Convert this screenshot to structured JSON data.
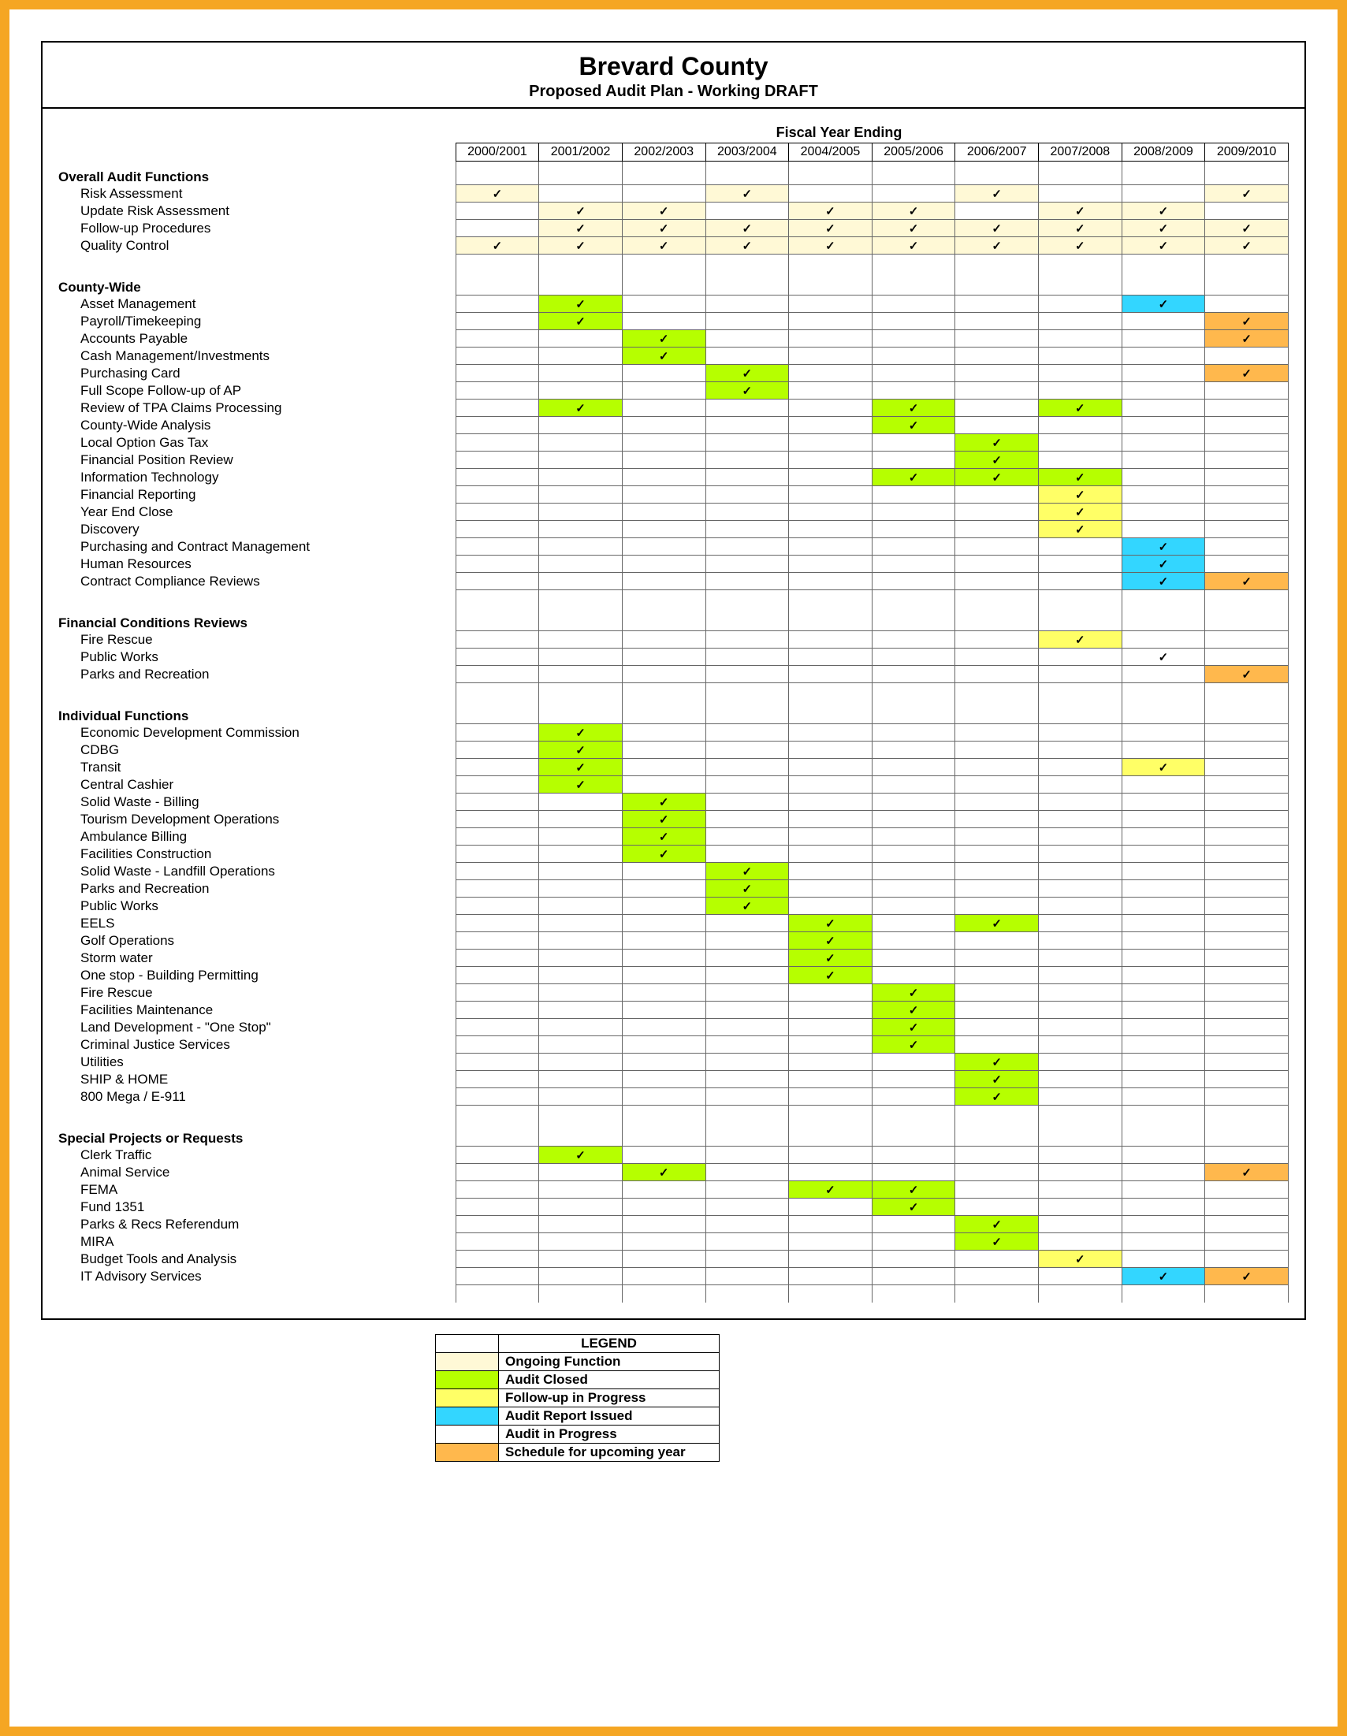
{
  "colors": {
    "ongoing": "#fff9d6",
    "closed": "#b6ff00",
    "followup": "#ffff66",
    "issued": "#33d6ff",
    "progress": "#ffffff",
    "upcoming": "#ffb84d",
    "frame": "#f5a623",
    "border": "#000000"
  },
  "title": "Brevard County",
  "subtitle": "Proposed Audit Plan - Working DRAFT",
  "fy_heading": "Fiscal Year Ending",
  "years": [
    "2000/2001",
    "2001/2002",
    "2002/2003",
    "2003/2004",
    "2004/2005",
    "2005/2006",
    "2006/2007",
    "2007/2008",
    "2008/2009",
    "2009/2010"
  ],
  "checkmark": "✓",
  "legend": {
    "title": "LEGEND",
    "items": [
      {
        "color": "ongoing",
        "label": "Ongoing Function"
      },
      {
        "color": "closed",
        "label": "Audit Closed"
      },
      {
        "color": "followup",
        "label": "Follow-up in Progress"
      },
      {
        "color": "issued",
        "label": "Audit Report Issued"
      },
      {
        "color": "progress",
        "label": "Audit in Progress"
      },
      {
        "color": "upcoming",
        "label": "Schedule for upcoming year"
      }
    ]
  },
  "sections": [
    {
      "title": "Overall Audit Functions",
      "rows": [
        {
          "label": "Risk Assessment",
          "cells": [
            "ongoing",
            "",
            "",
            "ongoing",
            "",
            "",
            "ongoing",
            "",
            "",
            "ongoing"
          ]
        },
        {
          "label": "Update Risk Assessment",
          "cells": [
            "",
            "ongoing",
            "ongoing",
            "",
            "ongoing",
            "ongoing",
            "",
            "ongoing",
            "ongoing",
            ""
          ]
        },
        {
          "label": "Follow-up Procedures",
          "cells": [
            "",
            "ongoing",
            "ongoing",
            "ongoing",
            "ongoing",
            "ongoing",
            "ongoing",
            "ongoing",
            "ongoing",
            "ongoing"
          ]
        },
        {
          "label": "Quality Control",
          "cells": [
            "ongoing",
            "ongoing",
            "ongoing",
            "ongoing",
            "ongoing",
            "ongoing",
            "ongoing",
            "ongoing",
            "ongoing",
            "ongoing"
          ]
        }
      ]
    },
    {
      "title": "County-Wide",
      "rows": [
        {
          "label": "Asset Management",
          "cells": [
            "",
            "closed",
            "",
            "",
            "",
            "",
            "",
            "",
            "issued",
            ""
          ]
        },
        {
          "label": "Payroll/Timekeeping",
          "cells": [
            "",
            "closed",
            "",
            "",
            "",
            "",
            "",
            "",
            "",
            "upcoming"
          ]
        },
        {
          "label": "Accounts Payable",
          "cells": [
            "",
            "",
            "closed",
            "",
            "",
            "",
            "",
            "",
            "",
            "upcoming"
          ]
        },
        {
          "label": "Cash Management/Investments",
          "cells": [
            "",
            "",
            "closed",
            "",
            "",
            "",
            "",
            "",
            "",
            ""
          ]
        },
        {
          "label": "Purchasing Card",
          "cells": [
            "",
            "",
            "",
            "closed",
            "",
            "",
            "",
            "",
            "",
            "upcoming"
          ]
        },
        {
          "label": "Full Scope Follow-up of AP",
          "cells": [
            "",
            "",
            "",
            "closed",
            "",
            "",
            "",
            "",
            "",
            ""
          ]
        },
        {
          "label": "Review of TPA Claims Processing",
          "cells": [
            "",
            "closed",
            "",
            "",
            "",
            "closed",
            "",
            "closed",
            "",
            ""
          ]
        },
        {
          "label": "County-Wide Analysis",
          "cells": [
            "",
            "",
            "",
            "",
            "",
            "closed",
            "",
            "",
            "",
            ""
          ]
        },
        {
          "label": "Local Option Gas Tax",
          "cells": [
            "",
            "",
            "",
            "",
            "",
            "",
            "closed",
            "",
            "",
            ""
          ]
        },
        {
          "label": "Financial Position Review",
          "cells": [
            "",
            "",
            "",
            "",
            "",
            "",
            "closed",
            "",
            "",
            ""
          ]
        },
        {
          "label": "Information Technology",
          "cells": [
            "",
            "",
            "",
            "",
            "",
            "closed",
            "closed",
            "closed",
            "",
            ""
          ]
        },
        {
          "label": "Financial Reporting",
          "cells": [
            "",
            "",
            "",
            "",
            "",
            "",
            "",
            "followup",
            "",
            ""
          ]
        },
        {
          "label": "Year End Close",
          "cells": [
            "",
            "",
            "",
            "",
            "",
            "",
            "",
            "followup",
            "",
            ""
          ]
        },
        {
          "label": "Discovery",
          "cells": [
            "",
            "",
            "",
            "",
            "",
            "",
            "",
            "followup",
            "",
            ""
          ]
        },
        {
          "label": "Purchasing and Contract Management",
          "cells": [
            "",
            "",
            "",
            "",
            "",
            "",
            "",
            "",
            "issued",
            ""
          ]
        },
        {
          "label": "Human Resources",
          "cells": [
            "",
            "",
            "",
            "",
            "",
            "",
            "",
            "",
            "issued",
            ""
          ]
        },
        {
          "label": "Contract Compliance Reviews",
          "cells": [
            "",
            "",
            "",
            "",
            "",
            "",
            "",
            "",
            "issued",
            "upcoming"
          ]
        }
      ]
    },
    {
      "title": "Financial Conditions Reviews",
      "rows": [
        {
          "label": "Fire Rescue",
          "cells": [
            "",
            "",
            "",
            "",
            "",
            "",
            "",
            "followup",
            "",
            ""
          ]
        },
        {
          "label": "Public Works",
          "cells": [
            "",
            "",
            "",
            "",
            "",
            "",
            "",
            "",
            "progress",
            ""
          ]
        },
        {
          "label": "Parks and Recreation",
          "cells": [
            "",
            "",
            "",
            "",
            "",
            "",
            "",
            "",
            "",
            "upcoming"
          ]
        }
      ]
    },
    {
      "title": "Individual Functions",
      "rows": [
        {
          "label": "Economic Development Commission",
          "cells": [
            "",
            "closed",
            "",
            "",
            "",
            "",
            "",
            "",
            "",
            ""
          ]
        },
        {
          "label": "CDBG",
          "cells": [
            "",
            "closed",
            "",
            "",
            "",
            "",
            "",
            "",
            "",
            ""
          ]
        },
        {
          "label": "Transit",
          "cells": [
            "",
            "closed",
            "",
            "",
            "",
            "",
            "",
            "",
            "followup",
            ""
          ]
        },
        {
          "label": "Central Cashier",
          "cells": [
            "",
            "closed",
            "",
            "",
            "",
            "",
            "",
            "",
            "",
            ""
          ]
        },
        {
          "label": "Solid Waste - Billing",
          "cells": [
            "",
            "",
            "closed",
            "",
            "",
            "",
            "",
            "",
            "",
            ""
          ]
        },
        {
          "label": "Tourism Development Operations",
          "cells": [
            "",
            "",
            "closed",
            "",
            "",
            "",
            "",
            "",
            "",
            ""
          ]
        },
        {
          "label": "Ambulance Billing",
          "cells": [
            "",
            "",
            "closed",
            "",
            "",
            "",
            "",
            "",
            "",
            ""
          ]
        },
        {
          "label": "Facilities Construction",
          "cells": [
            "",
            "",
            "closed",
            "",
            "",
            "",
            "",
            "",
            "",
            ""
          ]
        },
        {
          "label": "Solid Waste - Landfill Operations",
          "cells": [
            "",
            "",
            "",
            "closed",
            "",
            "",
            "",
            "",
            "",
            ""
          ]
        },
        {
          "label": "Parks and Recreation",
          "cells": [
            "",
            "",
            "",
            "closed",
            "",
            "",
            "",
            "",
            "",
            ""
          ]
        },
        {
          "label": "Public Works",
          "cells": [
            "",
            "",
            "",
            "closed",
            "",
            "",
            "",
            "",
            "",
            ""
          ]
        },
        {
          "label": "EELS",
          "cells": [
            "",
            "",
            "",
            "",
            "closed",
            "",
            "closed",
            "",
            "",
            ""
          ]
        },
        {
          "label": "Golf Operations",
          "cells": [
            "",
            "",
            "",
            "",
            "closed",
            "",
            "",
            "",
            "",
            ""
          ]
        },
        {
          "label": "Storm water",
          "cells": [
            "",
            "",
            "",
            "",
            "closed",
            "",
            "",
            "",
            "",
            ""
          ]
        },
        {
          "label": "One stop - Building Permitting",
          "cells": [
            "",
            "",
            "",
            "",
            "closed",
            "",
            "",
            "",
            "",
            ""
          ]
        },
        {
          "label": "Fire Rescue",
          "cells": [
            "",
            "",
            "",
            "",
            "",
            "closed",
            "",
            "",
            "",
            ""
          ]
        },
        {
          "label": "Facilities Maintenance",
          "cells": [
            "",
            "",
            "",
            "",
            "",
            "closed",
            "",
            "",
            "",
            ""
          ]
        },
        {
          "label": "Land Development - \"One Stop\"",
          "cells": [
            "",
            "",
            "",
            "",
            "",
            "closed",
            "",
            "",
            "",
            ""
          ]
        },
        {
          "label": "Criminal Justice Services",
          "cells": [
            "",
            "",
            "",
            "",
            "",
            "closed",
            "",
            "",
            "",
            ""
          ]
        },
        {
          "label": "Utilities",
          "cells": [
            "",
            "",
            "",
            "",
            "",
            "",
            "closed",
            "",
            "",
            ""
          ]
        },
        {
          "label": "SHIP & HOME",
          "cells": [
            "",
            "",
            "",
            "",
            "",
            "",
            "closed",
            "",
            "",
            ""
          ]
        },
        {
          "label": "800 Mega / E-911",
          "cells": [
            "",
            "",
            "",
            "",
            "",
            "",
            "closed",
            "",
            "",
            ""
          ]
        }
      ]
    },
    {
      "title": "Special Projects or Requests",
      "rows": [
        {
          "label": "Clerk Traffic",
          "cells": [
            "",
            "closed",
            "",
            "",
            "",
            "",
            "",
            "",
            "",
            ""
          ]
        },
        {
          "label": "Animal Service",
          "cells": [
            "",
            "",
            "closed",
            "",
            "",
            "",
            "",
            "",
            "",
            "upcoming"
          ]
        },
        {
          "label": "FEMA",
          "cells": [
            "",
            "",
            "",
            "",
            "closed",
            "closed",
            "",
            "",
            "",
            ""
          ]
        },
        {
          "label": "Fund 1351",
          "cells": [
            "",
            "",
            "",
            "",
            "",
            "closed",
            "",
            "",
            "",
            ""
          ]
        },
        {
          "label": "Parks & Recs Referendum",
          "cells": [
            "",
            "",
            "",
            "",
            "",
            "",
            "closed",
            "",
            "",
            ""
          ]
        },
        {
          "label": "MIRA",
          "cells": [
            "",
            "",
            "",
            "",
            "",
            "",
            "closed",
            "",
            "",
            ""
          ]
        },
        {
          "label": "Budget Tools and Analysis",
          "cells": [
            "",
            "",
            "",
            "",
            "",
            "",
            "",
            "followup",
            "",
            ""
          ]
        },
        {
          "label": "IT Advisory Services",
          "cells": [
            "",
            "",
            "",
            "",
            "",
            "",
            "",
            "",
            "issued",
            "upcoming"
          ]
        }
      ]
    }
  ]
}
